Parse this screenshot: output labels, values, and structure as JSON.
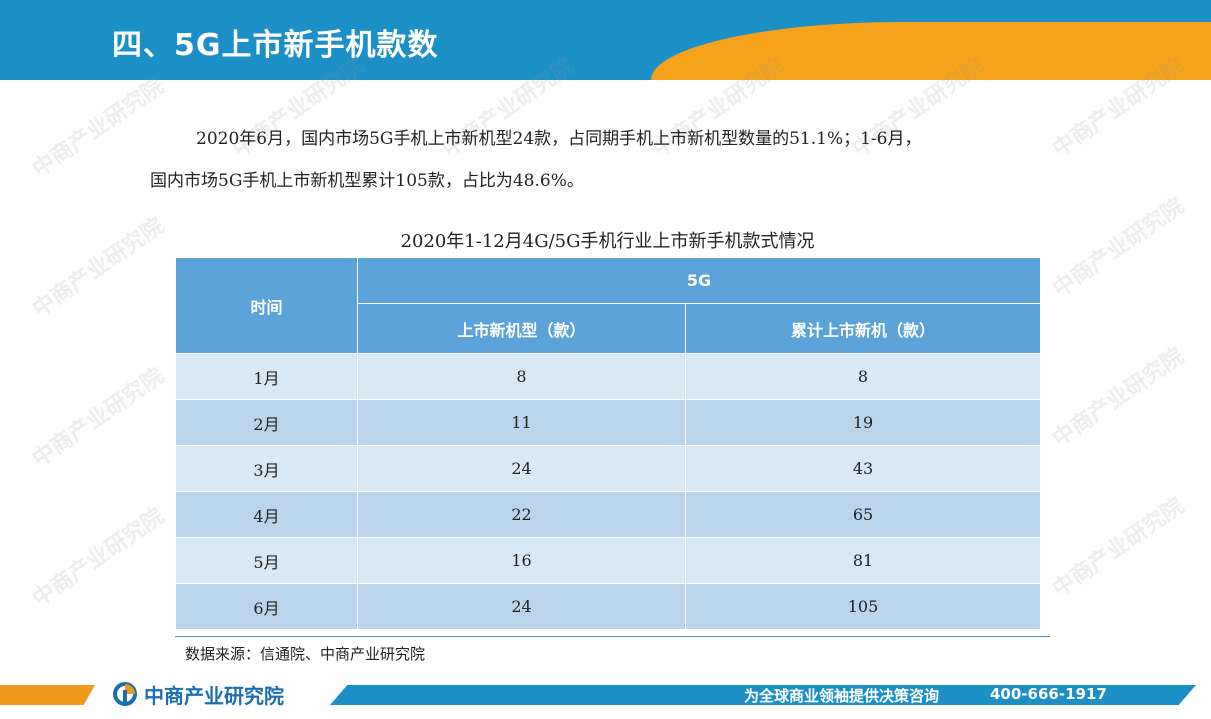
{
  "header": {
    "title": "四、5G上市新手机款数"
  },
  "paragraph": {
    "line1": "2020年6月，国内市场5G手机上市新机型24款，占同期手机上市新机型数量的51.1%；1-6月，",
    "line2": "国内市场5G手机上市新机型累计105款，占比为48.6%。"
  },
  "table": {
    "caption": "2020年1-12月4G/5G手机行业上市新手机款式情况",
    "header_time": "时间",
    "header_group": "5G",
    "col_new": "上市新机型（款）",
    "col_cum": "累计上市新机（款）",
    "rows": [
      {
        "month": "1月",
        "new": "8",
        "cum": "8"
      },
      {
        "month": "2月",
        "new": "11",
        "cum": "19"
      },
      {
        "month": "3月",
        "new": "24",
        "cum": "43"
      },
      {
        "month": "4月",
        "new": "22",
        "cum": "65"
      },
      {
        "month": "5月",
        "new": "16",
        "cum": "81"
      },
      {
        "month": "6月",
        "new": "24",
        "cum": "105"
      }
    ]
  },
  "source": "数据来源：信通院、中商产业研究院",
  "footer": {
    "brand": "中商产业研究院",
    "slogan": "为全球商业领袖提供决策咨询",
    "phone": "400-666-1917"
  },
  "watermark": {
    "text": "中商产业研究院"
  },
  "colors": {
    "header_blue": "#1b8fc6",
    "header_orange": "#f7a21b",
    "table_header": "#5aa2d8",
    "row_light": "#d9e8f5",
    "row_dark": "#bad4ec"
  }
}
